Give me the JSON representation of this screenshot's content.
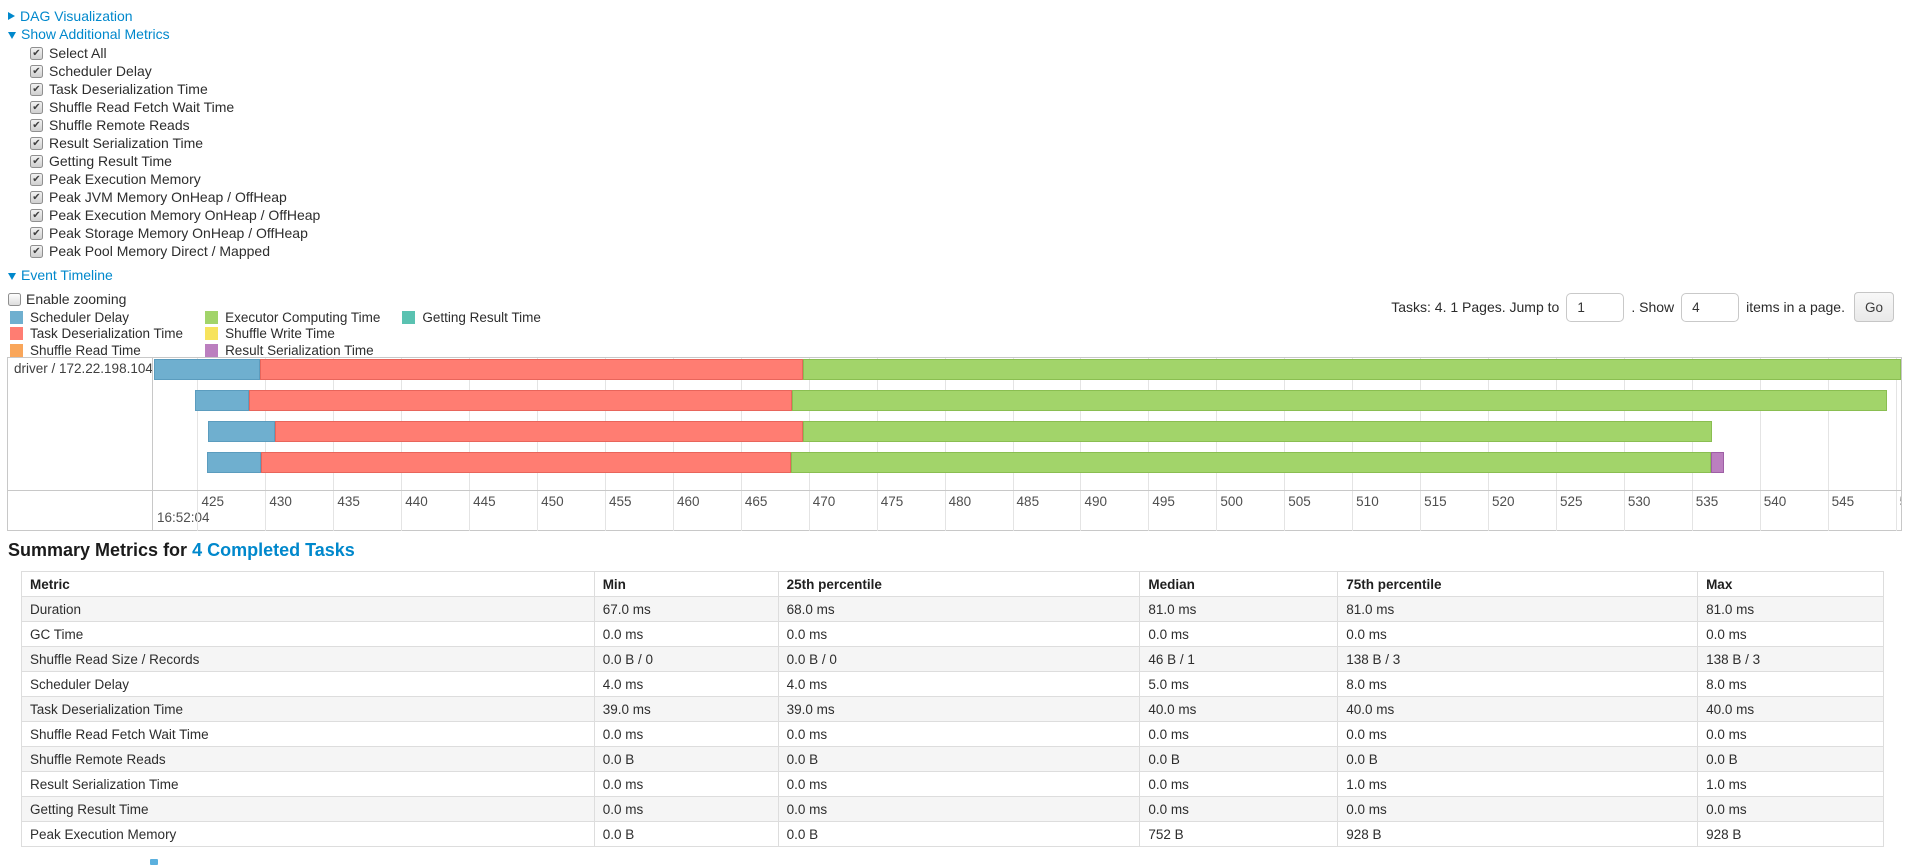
{
  "colors": {
    "link": "#0088cc",
    "chart_border": "#c8c8c8",
    "gridline": "#e4e4e4",
    "row_stripe": "#f5f5f5",
    "segment_colors": {
      "scheduler_delay": {
        "fill": "#6FAFCF",
        "border": "#5B9CBE"
      },
      "task_deserialization": {
        "fill": "#FF7D72",
        "border": "#E8655B"
      },
      "shuffle_read": {
        "fill": "#F9A65A",
        "border": "#E08F43"
      },
      "executor_computing": {
        "fill": "#A2D46A",
        "border": "#8ABE51"
      },
      "shuffle_write": {
        "fill": "#F7E35D",
        "border": "#DCC83F"
      },
      "result_serialization": {
        "fill": "#BB7FBF",
        "border": "#9E5FA5"
      },
      "getting_result": {
        "fill": "#5AC2B1",
        "border": "#43AD9A"
      }
    }
  },
  "controls": {
    "dag_toggle_label": "DAG Visualization",
    "metrics_toggle_label": "Show Additional Metrics",
    "metric_checkboxes": [
      {
        "label": "Select All",
        "checked": true
      },
      {
        "label": "Scheduler Delay",
        "checked": true
      },
      {
        "label": "Task Deserialization Time",
        "checked": true
      },
      {
        "label": "Shuffle Read Fetch Wait Time",
        "checked": true
      },
      {
        "label": "Shuffle Remote Reads",
        "checked": true
      },
      {
        "label": "Result Serialization Time",
        "checked": true
      },
      {
        "label": "Getting Result Time",
        "checked": true
      },
      {
        "label": "Peak Execution Memory",
        "checked": true
      },
      {
        "label": "Peak JVM Memory OnHeap / OffHeap",
        "checked": true
      },
      {
        "label": "Peak Execution Memory OnHeap / OffHeap",
        "checked": true
      },
      {
        "label": "Peak Storage Memory OnHeap / OffHeap",
        "checked": true
      },
      {
        "label": "Peak Pool Memory Direct / Mapped",
        "checked": true
      }
    ],
    "event_timeline_toggle_label": "Event Timeline",
    "enable_zooming": {
      "label": "Enable zooming",
      "checked": false
    }
  },
  "pagination": {
    "prefix_text": "Tasks: 4. 1 Pages. Jump to",
    "jump_value": "1",
    "mid_text": ". Show",
    "show_value": "4",
    "suffix_text": "items in a page.",
    "go_label": "Go"
  },
  "legend": {
    "items": [
      {
        "label": "Scheduler Delay",
        "key": "scheduler_delay"
      },
      {
        "label": "Task Deserialization Time",
        "key": "task_deserialization"
      },
      {
        "label": "Shuffle Read Time",
        "key": "shuffle_read"
      },
      {
        "label": "Executor Computing Time",
        "key": "executor_computing"
      },
      {
        "label": "Shuffle Write Time",
        "key": "shuffle_write"
      },
      {
        "label": "Result Serialization Time",
        "key": "result_serialization"
      },
      {
        "label": "Getting Result Time",
        "key": "getting_result"
      }
    ]
  },
  "chart_data": {
    "type": "timeline",
    "row_label": "driver / 172.22.198.104",
    "axis": {
      "unit": "ms within second 16:52:04",
      "min": 421.8,
      "max": 550.4,
      "tick_start": 425,
      "tick_step": 5,
      "tick_end": 550,
      "major_label": "16:52:04"
    },
    "tasks": [
      {
        "segments": [
          {
            "key": "scheduler_delay",
            "start": 421.8,
            "end": 429.6
          },
          {
            "key": "task_deserialization",
            "start": 429.6,
            "end": 469.6
          },
          {
            "key": "executor_computing",
            "start": 469.6,
            "end": 550.4
          }
        ]
      },
      {
        "segments": [
          {
            "key": "scheduler_delay",
            "start": 424.8,
            "end": 428.8
          },
          {
            "key": "task_deserialization",
            "start": 428.8,
            "end": 468.8
          },
          {
            "key": "executor_computing",
            "start": 468.8,
            "end": 549.4
          }
        ]
      },
      {
        "segments": [
          {
            "key": "scheduler_delay",
            "start": 425.8,
            "end": 430.7
          },
          {
            "key": "task_deserialization",
            "start": 430.7,
            "end": 469.6
          },
          {
            "key": "executor_computing",
            "start": 469.6,
            "end": 536.5
          }
        ]
      },
      {
        "segments": [
          {
            "key": "scheduler_delay",
            "start": 425.7,
            "end": 429.7
          },
          {
            "key": "task_deserialization",
            "start": 429.7,
            "end": 468.7
          },
          {
            "key": "executor_computing",
            "start": 468.7,
            "end": 536.4
          },
          {
            "key": "result_serialization",
            "start": 536.4,
            "end": 537.4
          }
        ]
      }
    ]
  },
  "summary": {
    "heading_prefix": "Summary Metrics for ",
    "heading_link": "4 Completed Tasks",
    "table": {
      "columns": [
        "Metric",
        "Min",
        "25th percentile",
        "Median",
        "75th percentile",
        "Max"
      ],
      "rows": [
        [
          "Duration",
          "67.0 ms",
          "68.0 ms",
          "81.0 ms",
          "81.0 ms",
          "81.0 ms"
        ],
        [
          "GC Time",
          "0.0 ms",
          "0.0 ms",
          "0.0 ms",
          "0.0 ms",
          "0.0 ms"
        ],
        [
          "Shuffle Read Size / Records",
          "0.0 B / 0",
          "0.0 B / 0",
          "46 B / 1",
          "138 B / 3",
          "138 B / 3"
        ],
        [
          "Scheduler Delay",
          "4.0 ms",
          "4.0 ms",
          "5.0 ms",
          "8.0 ms",
          "8.0 ms"
        ],
        [
          "Task Deserialization Time",
          "39.0 ms",
          "39.0 ms",
          "40.0 ms",
          "40.0 ms",
          "40.0 ms"
        ],
        [
          "Shuffle Read Fetch Wait Time",
          "0.0 ms",
          "0.0 ms",
          "0.0 ms",
          "0.0 ms",
          "0.0 ms"
        ],
        [
          "Shuffle Remote Reads",
          "0.0 B",
          "0.0 B",
          "0.0 B",
          "0.0 B",
          "0.0 B"
        ],
        [
          "Result Serialization Time",
          "0.0 ms",
          "0.0 ms",
          "0.0 ms",
          "1.0 ms",
          "1.0 ms"
        ],
        [
          "Getting Result Time",
          "0.0 ms",
          "0.0 ms",
          "0.0 ms",
          "0.0 ms",
          "0.0 ms"
        ],
        [
          "Peak Execution Memory",
          "0.0 B",
          "0.0 B",
          "752 B",
          "928 B",
          "928 B"
        ]
      ]
    }
  }
}
